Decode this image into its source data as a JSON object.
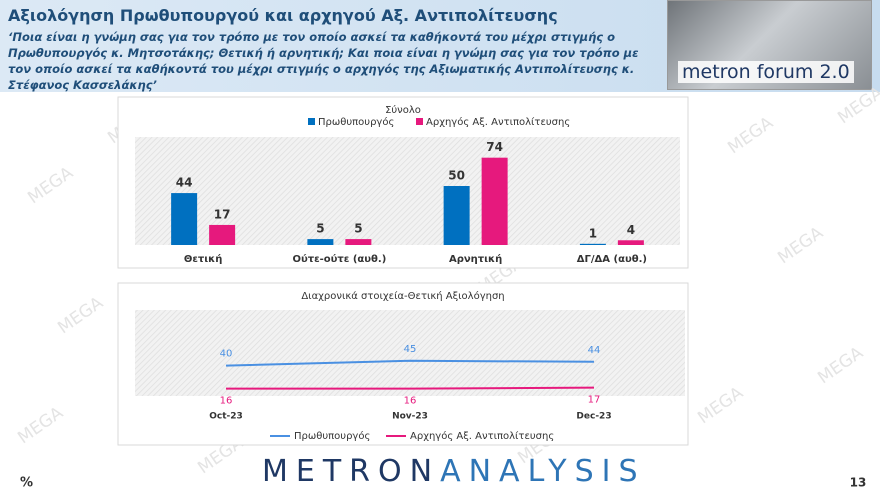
{
  "header": {
    "title": "Αξιολόγηση Πρωθυπουργού και αρχηγού Αξ. Αντιπολίτευσης",
    "question": "‘Ποια είναι η γνώμη σας για τον τρόπο με τον οποίο ασκεί τα καθήκοντά του μέχρι στιγμής ο Πρωθυπουργός κ. Μητσοτάκης; Θετική ή αρνητική; Και ποια είναι η γνώμη σας για τον τρόπο με τον οποίο ασκεί τα καθήκοντά του μέχρι στιγμής ο αρχηγός της Αξιωματικής Αντιπολίτευσης κ. Στέφανος Κασσελάκης’",
    "logo": "metron forum 2.0"
  },
  "watermark": "MEGA",
  "footer": {
    "unit": "%",
    "brand_first": "METRON",
    "brand_second": "ANALYSIS",
    "page": "13"
  },
  "chart_data": [
    {
      "type": "bar",
      "title": "Σύνολο",
      "categories": [
        "Θετική",
        "Ούτε-ούτε (αυθ.)",
        "Αρνητική",
        "ΔΓ/ΔΑ (αυθ.)"
      ],
      "series": [
        {
          "name": "Πρωθυπουργός",
          "color": "#0070c0",
          "values": [
            44,
            5,
            50,
            1
          ]
        },
        {
          "name": "Αρχηγός Αξ. Αντιπολίτευσης",
          "color": "#e6197d",
          "values": [
            17,
            5,
            74,
            4
          ]
        }
      ]
    },
    {
      "type": "line",
      "title": "Διαχρονικά στοιχεία-Θετική Αξιολόγηση",
      "categories": [
        "Oct-23",
        "Nov-23",
        "Dec-23"
      ],
      "series": [
        {
          "name": "Πρωθυπουργός",
          "color": "#4a90e2",
          "values": [
            40,
            45,
            44
          ]
        },
        {
          "name": "Αρχηγός Αξ. Αντιπολίτευσης",
          "color": "#e6197d",
          "values": [
            16,
            16,
            17
          ]
        }
      ]
    }
  ]
}
